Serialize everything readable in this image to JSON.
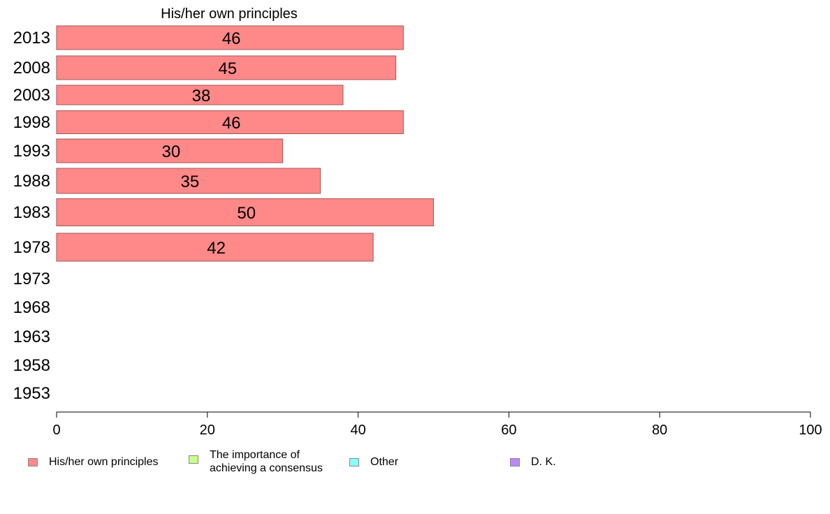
{
  "chart_data": {
    "type": "bar",
    "orientation": "horizontal",
    "title": "His/her own principles",
    "categories": [
      "2013",
      "2008",
      "2003",
      "1998",
      "1993",
      "1988",
      "1983",
      "1978",
      "1973",
      "1968",
      "1963",
      "1958",
      "1953"
    ],
    "series": [
      {
        "name": "His/her own principles",
        "color": "#ff8888",
        "values": [
          46,
          45,
          38,
          46,
          30,
          35,
          50,
          42,
          null,
          null,
          null,
          null,
          null
        ]
      },
      {
        "name": "The importance of\nachieving a consensus",
        "color": "#ccff88",
        "values": [
          null,
          null,
          null,
          null,
          null,
          null,
          null,
          null,
          null,
          null,
          null,
          null,
          null
        ]
      },
      {
        "name": "Other",
        "color": "#88ffff",
        "values": [
          null,
          null,
          null,
          null,
          null,
          null,
          null,
          null,
          null,
          null,
          null,
          null,
          null
        ]
      },
      {
        "name": "D. K.",
        "color": "#bb88ff",
        "values": [
          null,
          null,
          null,
          null,
          null,
          null,
          null,
          null,
          null,
          null,
          null,
          null,
          null
        ]
      }
    ],
    "xlim": [
      0,
      100
    ],
    "xticks": [
      "0",
      "20",
      "40",
      "60",
      "80",
      "100"
    ],
    "grid": false,
    "legend_position": "bottom"
  }
}
